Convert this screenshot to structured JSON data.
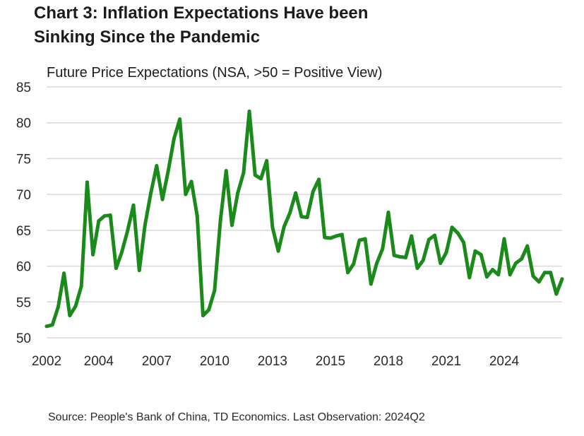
{
  "title": {
    "line1": "Chart 3: Inflation Expectations Have been",
    "line2": "Sinking Since the Pandemic"
  },
  "source": "Source: People's Bank of China, TD Economics.  Last Observation: 2024Q2",
  "colors": {
    "line": "#1a8a1a",
    "grid": "#d9d9d9"
  },
  "chart_data": {
    "type": "line",
    "title": "Chart 3: Inflation Expectations Have been Sinking Since the Pandemic",
    "subtitle": "Future Price Expectations (NSA, >50 = Positive View)",
    "xlabel": "",
    "ylabel": "",
    "ylim": [
      50,
      85
    ],
    "xlim": [
      2002,
      2024.25
    ],
    "grid": true,
    "yticks": [
      "50",
      "55",
      "60",
      "65",
      "70",
      "75",
      "80",
      "85"
    ],
    "xticks": [
      "2002",
      "2004",
      "2007",
      "2010",
      "2013",
      "2015",
      "2018",
      "2021",
      "2024"
    ],
    "xtick_values": [
      2002,
      2004.25,
      2006.75,
      2009.25,
      2011.75,
      2014.25,
      2016.75,
      2019.25,
      2021.75
    ],
    "series": [
      {
        "name": "Future Price Expectations",
        "x": [
          2002.0,
          2002.25,
          2002.5,
          2002.75,
          2003.0,
          2003.25,
          2003.5,
          2003.75,
          2004.0,
          2004.25,
          2004.5,
          2004.75,
          2005.0,
          2005.25,
          2005.5,
          2005.75,
          2006.0,
          2006.25,
          2006.5,
          2006.75,
          2007.0,
          2007.25,
          2007.5,
          2007.75,
          2008.0,
          2008.25,
          2008.5,
          2008.75,
          2009.0,
          2009.25,
          2009.5,
          2009.75,
          2010.0,
          2010.25,
          2010.5,
          2010.75,
          2011.0,
          2011.25,
          2011.5,
          2011.75,
          2012.0,
          2012.25,
          2012.5,
          2012.75,
          2013.0,
          2013.25,
          2013.5,
          2013.75,
          2014.0,
          2014.25,
          2014.5,
          2014.75,
          2015.0,
          2015.25,
          2015.5,
          2015.75,
          2016.0,
          2016.25,
          2016.5,
          2016.75,
          2017.0,
          2017.25,
          2017.5,
          2017.75,
          2018.0,
          2018.25,
          2018.5,
          2018.75,
          2019.0,
          2019.25,
          2019.5,
          2019.75,
          2020.0,
          2020.25,
          2020.5,
          2020.75,
          2021.0,
          2021.25,
          2021.5,
          2021.75,
          2022.0,
          2022.25,
          2022.5,
          2022.75,
          2023.0,
          2023.25,
          2023.5,
          2023.75,
          2024.0,
          2024.25
        ],
        "values": [
          51.6,
          51.8,
          54.3,
          59.0,
          53.1,
          54.4,
          57.2,
          71.7,
          61.6,
          66.3,
          67.0,
          67.1,
          59.7,
          62.0,
          65.0,
          68.5,
          59.4,
          65.8,
          70.2,
          74.0,
          69.3,
          73.3,
          77.8,
          80.5,
          70.0,
          71.8,
          67.0,
          53.1,
          53.9,
          56.6,
          66.3,
          73.3,
          65.7,
          70.2,
          73.0,
          81.6,
          72.7,
          72.2,
          74.7,
          65.4,
          62.1,
          65.5,
          67.4,
          70.2,
          66.9,
          66.8,
          70.4,
          72.1,
          64.0,
          63.9,
          64.2,
          64.4,
          59.1,
          60.3,
          63.6,
          63.8,
          57.5,
          60.4,
          62.4,
          67.5,
          61.5,
          61.3,
          61.2,
          64.2,
          59.7,
          60.8,
          63.7,
          64.3,
          60.4,
          61.9,
          65.4,
          64.6,
          63.3,
          58.4,
          62.1,
          61.6,
          58.5,
          59.5,
          58.8,
          63.8,
          58.8,
          60.4,
          61.0,
          62.8,
          58.6,
          57.8,
          59.1,
          59.1,
          56.1,
          58.2
        ]
      }
    ]
  }
}
